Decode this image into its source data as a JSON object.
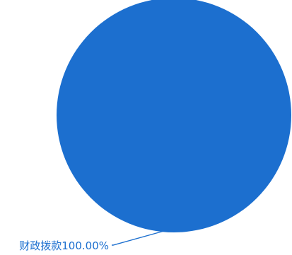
{
  "chart_data": {
    "type": "pie",
    "title": "",
    "slices": [
      {
        "label": "财政拨款100.00%",
        "value": 100.0,
        "color": "#1C6FCF"
      }
    ]
  },
  "colors": {
    "label_text": "#1C6FCF",
    "leader_line": "#1C6FCF",
    "background": "#FFFFFF"
  }
}
